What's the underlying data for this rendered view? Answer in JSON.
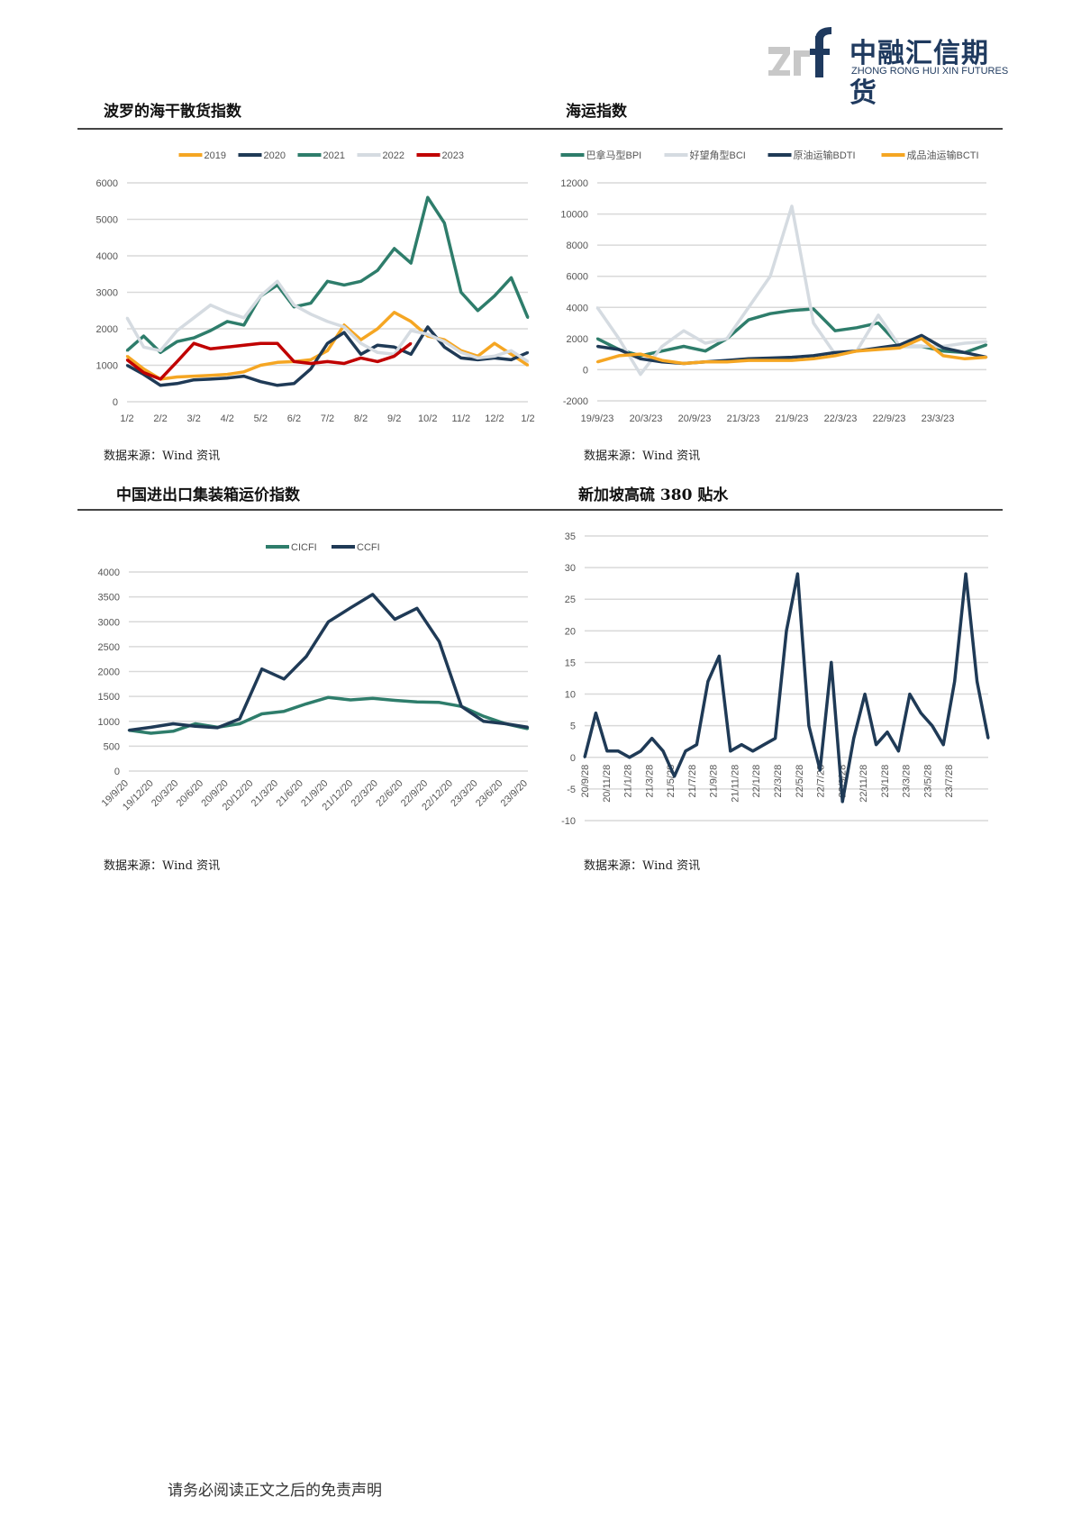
{
  "header": {
    "logo_mark": "zrf",
    "logo_cn": "中融汇信期货",
    "logo_en": "ZHONG RONG HUI XIN FUTURES"
  },
  "colors": {
    "navy": "#1f3a56",
    "green": "#2e7d6b",
    "orange": "#f5a623",
    "lightgray": "#d5dbe1",
    "red": "#c00000"
  },
  "footer": {
    "disclaimer": "请务必阅读正文之后的免责声明"
  },
  "chart_data": [
    {
      "id": "bdi",
      "type": "line",
      "title": "波罗的海干散货指数",
      "source": "数据来源：Wind 资讯",
      "ylim": [
        0,
        6000
      ],
      "yticks": [
        0,
        1000,
        2000,
        3000,
        4000,
        5000,
        6000
      ],
      "grid": true,
      "legend": "top",
      "xticks": [
        "1/2",
        "2/2",
        "3/2",
        "4/2",
        "5/2",
        "6/2",
        "7/2",
        "8/2",
        "9/2",
        "10/2",
        "11/2",
        "12/2",
        "1/2"
      ],
      "x": [
        "1/2",
        "1/16",
        "2/2",
        "2/16",
        "3/2",
        "3/16",
        "4/2",
        "4/16",
        "5/2",
        "5/16",
        "6/2",
        "6/16",
        "7/2",
        "7/16",
        "8/2",
        "8/16",
        "9/2",
        "9/16",
        "10/2",
        "10/16",
        "11/2",
        "11/16",
        "12/2",
        "12/16",
        "1/2"
      ],
      "series": [
        {
          "name": "2019",
          "color": "#f5a623",
          "values": [
            1250,
            900,
            620,
            680,
            700,
            720,
            750,
            820,
            1000,
            1080,
            1100,
            1150,
            1400,
            2100,
            1700,
            2000,
            2450,
            2200,
            1800,
            1700,
            1400,
            1250,
            1600,
            1300,
            1000
          ]
        },
        {
          "name": "2020",
          "color": "#1f3a56",
          "values": [
            1000,
            750,
            450,
            500,
            600,
            620,
            650,
            700,
            550,
            450,
            500,
            900,
            1600,
            1900,
            1300,
            1550,
            1500,
            1300,
            2050,
            1500,
            1200,
            1150,
            1200,
            1150,
            1350
          ]
        },
        {
          "name": "2021",
          "color": "#2e7d6b",
          "values": [
            1400,
            1800,
            1350,
            1650,
            1750,
            1950,
            2200,
            2100,
            2900,
            3200,
            2600,
            2700,
            3300,
            3200,
            3300,
            3600,
            4200,
            3800,
            5600,
            4900,
            3000,
            2500,
            2900,
            3400,
            2300
          ]
        },
        {
          "name": "2022",
          "color": "#d5dbe1",
          "values": [
            2300,
            1500,
            1400,
            1950,
            2300,
            2650,
            2450,
            2300,
            2900,
            3300,
            2650,
            2400,
            2200,
            2050,
            1600,
            1350,
            1300,
            1950,
            1850,
            1650,
            1350,
            1200,
            1250,
            1400,
            1100
          ]
        },
        {
          "name": "2023",
          "color": "#c00000",
          "values": [
            1150,
            800,
            620,
            1100,
            1600,
            1450,
            1500,
            1550,
            1600,
            1600,
            1100,
            1050,
            1100,
            1050,
            1200,
            1100,
            1250,
            1600,
            null,
            null,
            null,
            null,
            null,
            null,
            null
          ]
        }
      ]
    },
    {
      "id": "shipping",
      "type": "line",
      "title": "海运指数",
      "source": "数据来源：Wind 资讯",
      "ylim": [
        -2000,
        12000
      ],
      "yticks": [
        -2000,
        0,
        2000,
        4000,
        6000,
        8000,
        10000,
        12000
      ],
      "grid": true,
      "legend": "top",
      "xticks": [
        "19/9/23",
        "20/3/23",
        "20/9/23",
        "21/3/23",
        "21/9/23",
        "22/3/23",
        "22/9/23",
        "23/3/23"
      ],
      "x": [
        "19/9",
        "19/12",
        "20/3",
        "20/6",
        "20/9",
        "20/12",
        "21/3",
        "21/6",
        "21/8",
        "21/9",
        "21/10",
        "21/12",
        "22/3",
        "22/6",
        "22/9",
        "22/12",
        "23/3",
        "23/6",
        "23/9"
      ],
      "series": [
        {
          "name": "巴拿马型BPI",
          "color": "#2e7d6b",
          "values": [
            2000,
            1300,
            900,
            1200,
            1500,
            1200,
            2000,
            3200,
            3600,
            3800,
            3900,
            2500,
            2700,
            3000,
            1500,
            1500,
            1200,
            1100,
            1600
          ]
        },
        {
          "name": "好望角型BCI",
          "color": "#d5dbe1",
          "values": [
            4000,
            2000,
            -300,
            1500,
            2500,
            1700,
            2000,
            4000,
            6000,
            10500,
            3000,
            1000,
            1200,
            3500,
            1500,
            1500,
            1500,
            1700,
            1800
          ]
        },
        {
          "name": "原油运输BDTI",
          "color": "#1f3a56",
          "values": [
            1500,
            1300,
            700,
            500,
            400,
            500,
            600,
            700,
            750,
            800,
            900,
            1100,
            1200,
            1400,
            1600,
            2200,
            1400,
            1100,
            800
          ]
        },
        {
          "name": "成品油运输BCTI",
          "color": "#f5a623",
          "values": [
            500,
            900,
            1000,
            600,
            400,
            500,
            500,
            600,
            600,
            600,
            700,
            900,
            1200,
            1300,
            1400,
            2000,
            900,
            700,
            800
          ]
        }
      ]
    },
    {
      "id": "ccfi",
      "type": "line",
      "title": "中国进出口集装箱运价指数",
      "source": "数据来源：Wind 资讯",
      "ylim": [
        0,
        4000
      ],
      "yticks": [
        0,
        500,
        1000,
        1500,
        2000,
        2500,
        3000,
        3500,
        4000
      ],
      "grid": true,
      "legend": "top",
      "xticks": [
        "19/9/20",
        "19/12/20",
        "20/3/20",
        "20/6/20",
        "20/9/20",
        "20/12/20",
        "21/3/20",
        "21/6/20",
        "21/9/20",
        "21/12/20",
        "22/3/20",
        "22/6/20",
        "22/9/20",
        "22/12/20",
        "23/3/20",
        "23/6/20",
        "23/9/20"
      ],
      "x": [
        "19/9",
        "19/12",
        "20/3",
        "20/6",
        "20/9",
        "20/12",
        "21/3",
        "21/4",
        "21/6",
        "21/9",
        "21/12",
        "22/3",
        "22/6",
        "22/8",
        "22/9",
        "22/12",
        "23/3",
        "23/6",
        "23/9"
      ],
      "series": [
        {
          "name": "CICFI",
          "color": "#2e7d6b",
          "values": [
            820,
            760,
            800,
            950,
            880,
            950,
            1150,
            1200,
            1350,
            1480,
            1430,
            1460,
            1420,
            1390,
            1380,
            1300,
            1100,
            950,
            850
          ]
        },
        {
          "name": "CCFI",
          "color": "#1f3a56",
          "values": [
            820,
            880,
            950,
            900,
            870,
            1050,
            2050,
            1850,
            2300,
            3000,
            3280,
            3550,
            3050,
            3270,
            2600,
            1300,
            1000,
            950,
            880
          ]
        }
      ]
    },
    {
      "id": "sg380",
      "type": "line",
      "title": "新加坡高硫 380 贴水",
      "source": "数据来源：Wind 资讯",
      "ylim": [
        -10,
        35
      ],
      "yticks": [
        -10,
        -5,
        0,
        5,
        10,
        15,
        20,
        25,
        30,
        35
      ],
      "grid": true,
      "legend": "none",
      "xticks": [
        "20/9/28",
        "20/11/28",
        "21/1/28",
        "21/3/28",
        "21/5/28",
        "21/7/28",
        "21/9/28",
        "21/11/28",
        "22/1/28",
        "22/3/28",
        "22/5/28",
        "22/7/28",
        "22/9/28",
        "22/11/28",
        "23/1/28",
        "23/3/28",
        "23/5/28",
        "23/7/28"
      ],
      "x": [
        "20/9",
        "20/10",
        "20/11",
        "20/12",
        "21/1",
        "21/2",
        "21/3",
        "21/4",
        "21/5",
        "21/6",
        "21/7",
        "21/8",
        "21/9",
        "21/10",
        "21/11",
        "21/12",
        "22/1",
        "22/2",
        "22/3",
        "22/4",
        "22/5",
        "22/6",
        "22/7",
        "22/8",
        "22/9",
        "22/10",
        "22/11",
        "22/12",
        "23/1",
        "23/2",
        "23/3",
        "23/4",
        "23/5",
        "23/6",
        "23/7",
        "23/8",
        "23/9"
      ],
      "series": [
        {
          "color": "#1f3a56",
          "values": [
            0,
            7,
            1,
            1,
            0,
            1,
            3,
            1,
            -3,
            1,
            2,
            12,
            16,
            1,
            2,
            1,
            2,
            3,
            20,
            29,
            5,
            -2,
            15,
            -7,
            3,
            10,
            2,
            4,
            1,
            10,
            7,
            5,
            2,
            12,
            29,
            12,
            3
          ]
        }
      ]
    }
  ]
}
